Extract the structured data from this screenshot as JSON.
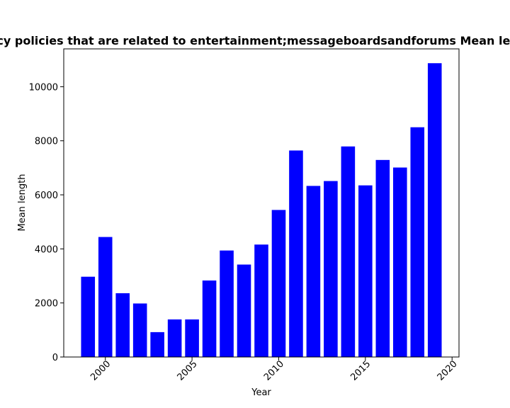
{
  "chart_data": {
    "type": "bar",
    "title": "Mean length of privacy policies that are related to entertainment;messageboardsandforums Mean length in privacy policies",
    "xlabel": "Year",
    "ylabel": "Mean length",
    "x": [
      1999,
      2000,
      2001,
      2002,
      2003,
      2004,
      2005,
      2006,
      2007,
      2008,
      2009,
      2010,
      2011,
      2012,
      2013,
      2014,
      2015,
      2016,
      2017,
      2018,
      2019
    ],
    "values": [
      2970,
      4440,
      2360,
      1980,
      920,
      1390,
      1390,
      2830,
      3940,
      3420,
      4160,
      5440,
      7640,
      6330,
      6510,
      7790,
      6350,
      7290,
      7010,
      8500,
      10870
    ],
    "xlim": [
      1997.6,
      2020.4
    ],
    "ylim": [
      0,
      11400
    ],
    "xticks": [
      2000,
      2005,
      2010,
      2015,
      2020
    ],
    "yticks": [
      0,
      2000,
      4000,
      6000,
      8000,
      10000
    ],
    "bar_color": "#0000ff",
    "grid": false
  }
}
